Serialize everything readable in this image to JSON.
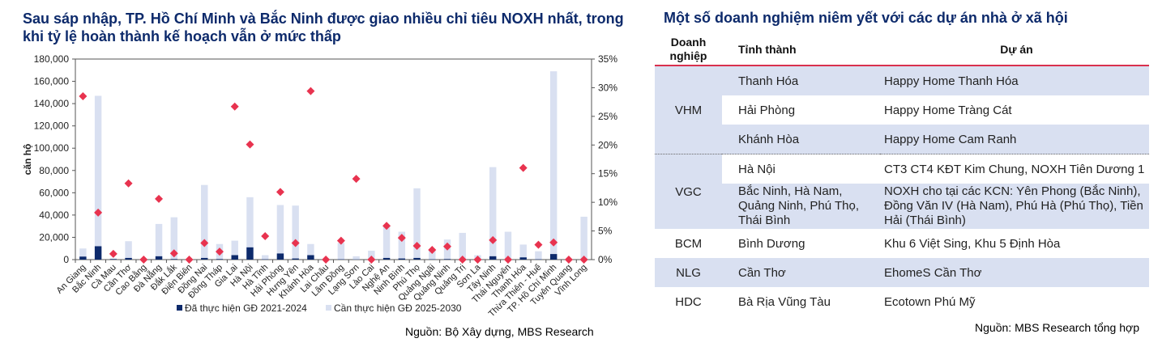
{
  "chart_title": "Sau sáp nhập, TP. Hồ Chí Minh và Bắc Ninh được giao nhiều chỉ tiêu NOXH nhất, trong khi tỷ lệ hoàn thành kế hoạch vẫn ở mức thấp",
  "chart_source": "Nguồn: Bộ Xây dựng, MBS Research",
  "chart_data": {
    "type": "bar",
    "ylabel": "căn hộ",
    "ylim": [
      0,
      180000
    ],
    "y2lim": [
      0,
      35
    ],
    "yticks": [
      "0",
      "20,000",
      "40,000",
      "60,000",
      "80,000",
      "100,000",
      "120,000",
      "140,000",
      "160,000",
      "180,000"
    ],
    "y2ticks": [
      "0%",
      "5%",
      "10%",
      "15%",
      "20%",
      "25%",
      "30%",
      "35%"
    ],
    "legend_position": "bottom",
    "categories": [
      "An Giang",
      "Bắc Ninh",
      "Cà Mau",
      "Cần Thơ",
      "Cao Bằng",
      "Đà Nẵng",
      "Đắk Lắk",
      "Điện Biên",
      "Đồng Nai",
      "Đồng Tháp",
      "Gia Lai",
      "Hà Nội",
      "Hà Tĩnh",
      "Hải Phòng",
      "Hưng Yên",
      "Khánh Hòa",
      "Lai Châu",
      "Lâm Đồng",
      "Lạng Sơn",
      "Lào Cai",
      "Nghệ An",
      "Ninh Bình",
      "Phú Thọ",
      "Quảng Ngãi",
      "Quảng Ninh",
      "Quảng Trị",
      "Sơn La",
      "Tây Ninh",
      "Thái Nguyên",
      "Thanh Hóa",
      "Thừa Thiên - Huế",
      "TP. Hồ Chí Minh",
      "Tuyên Quang",
      "Vĩnh Long"
    ],
    "series": [
      {
        "name": "Đã thực hiện GĐ 2021-2024",
        "color": "#0d2a6b",
        "values": [
          2700,
          12000,
          500,
          1500,
          0,
          3000,
          500,
          0,
          1500,
          500,
          4000,
          11000,
          300,
          5500,
          1000,
          4000,
          0,
          300,
          200,
          300,
          1500,
          1000,
          1500,
          300,
          500,
          300,
          200,
          3000,
          300,
          2000,
          300,
          5000,
          0,
          0
        ]
      },
      {
        "name": "Cần thực hiện GĐ 2025-2030",
        "color": "#d9e0f1",
        "values": [
          10000,
          147000,
          1000,
          16500,
          0,
          32000,
          38000,
          0,
          67000,
          14000,
          17000,
          56000,
          4000,
          49000,
          48500,
          14000,
          0,
          15000,
          3000,
          8000,
          30000,
          25000,
          64000,
          8000,
          18000,
          24000,
          4000,
          83000,
          25000,
          13500,
          7500,
          169000,
          0,
          38500
        ]
      },
      {
        "name": "",
        "color": "#e8334f",
        "axis": "right",
        "unit": "%",
        "values": [
          28.5,
          8.2,
          1.0,
          13.3,
          0,
          10.6,
          1.1,
          0,
          2.9,
          1.4,
          26.7,
          20.1,
          4.1,
          11.8,
          2.9,
          29.4,
          0,
          3.3,
          14.1,
          0,
          5.9,
          3.8,
          2.4,
          1.7,
          2.3,
          0,
          0,
          3.4,
          0,
          16.0,
          2.6,
          3.0,
          0,
          0
        ]
      }
    ]
  },
  "table": {
    "title": "Một số doanh nghiệm niêm yết với các dự án nhà ở xã hội",
    "headers": [
      "Doanh nghiệp",
      "Tỉnh thành",
      "Dự án"
    ],
    "rows": [
      {
        "company": "VHM",
        "province": "Thanh Hóa",
        "project": "Happy Home Thanh Hóa"
      },
      {
        "company": "",
        "province": "Hải Phòng",
        "project": "Happy Home Tràng Cát"
      },
      {
        "company": "",
        "province": "Khánh Hòa",
        "project": "Happy Home Cam Ranh"
      },
      {
        "company": "VGC",
        "province": "Hà Nội",
        "project": "CT3 CT4 KĐT Kim Chung, NOXH Tiên Dương 1"
      },
      {
        "company": "",
        "province": "Bắc Ninh, Hà Nam, Quảng Ninh, Phú Thọ, Thái Bình",
        "project": "NOXH cho tại các KCN: Yên Phong (Bắc Ninh), Đồng Văn IV (Hà Nam), Phú Hà (Phú Thọ), Tiền Hải (Thái Bình)"
      },
      {
        "company": "BCM",
        "province": "Bình Dương",
        "project": "Khu 6 Việt Sing, Khu 5 Định Hòa"
      },
      {
        "company": "NLG",
        "province": "Cần Thơ",
        "project": "EhomeS Cần Thơ"
      },
      {
        "company": "HDC",
        "province": "Bà Rịa Vũng Tàu",
        "project": "Ecotown Phú Mỹ"
      }
    ],
    "source": "Nguồn: MBS Research tổng hợp"
  }
}
